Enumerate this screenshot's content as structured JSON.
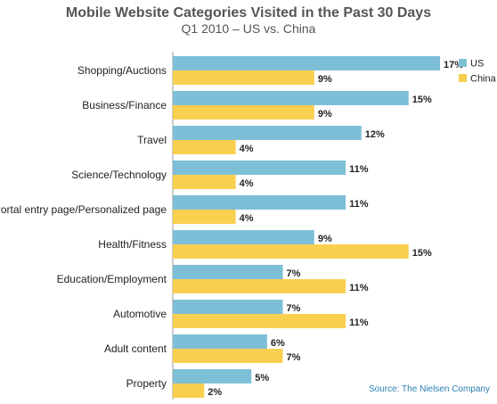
{
  "chart_data": {
    "type": "bar",
    "orientation": "horizontal",
    "title": "Mobile Website Categories Visited in the Past 30 Days",
    "subtitle": "Q1 2010 – US vs. China",
    "categories": [
      "Shopping/Auctions",
      "Business/Finance",
      "Travel",
      "Science/Technology",
      "Portal entry page/Personalized page",
      "Health/Fitness",
      "Education/Employment",
      "Automotive",
      "Adult content",
      "Property"
    ],
    "series": [
      {
        "name": "US",
        "color": "#7ebfd8",
        "values": [
          17,
          15,
          12,
          11,
          11,
          9,
          7,
          7,
          6,
          5
        ]
      },
      {
        "name": "China",
        "color": "#f9cf50",
        "values": [
          9,
          9,
          4,
          4,
          4,
          15,
          11,
          11,
          7,
          2
        ]
      }
    ],
    "value_suffix": "%",
    "xlim": [
      0,
      17
    ],
    "legend_position": "top-right",
    "grid": false
  },
  "source": "Source: The Nielsen Company"
}
